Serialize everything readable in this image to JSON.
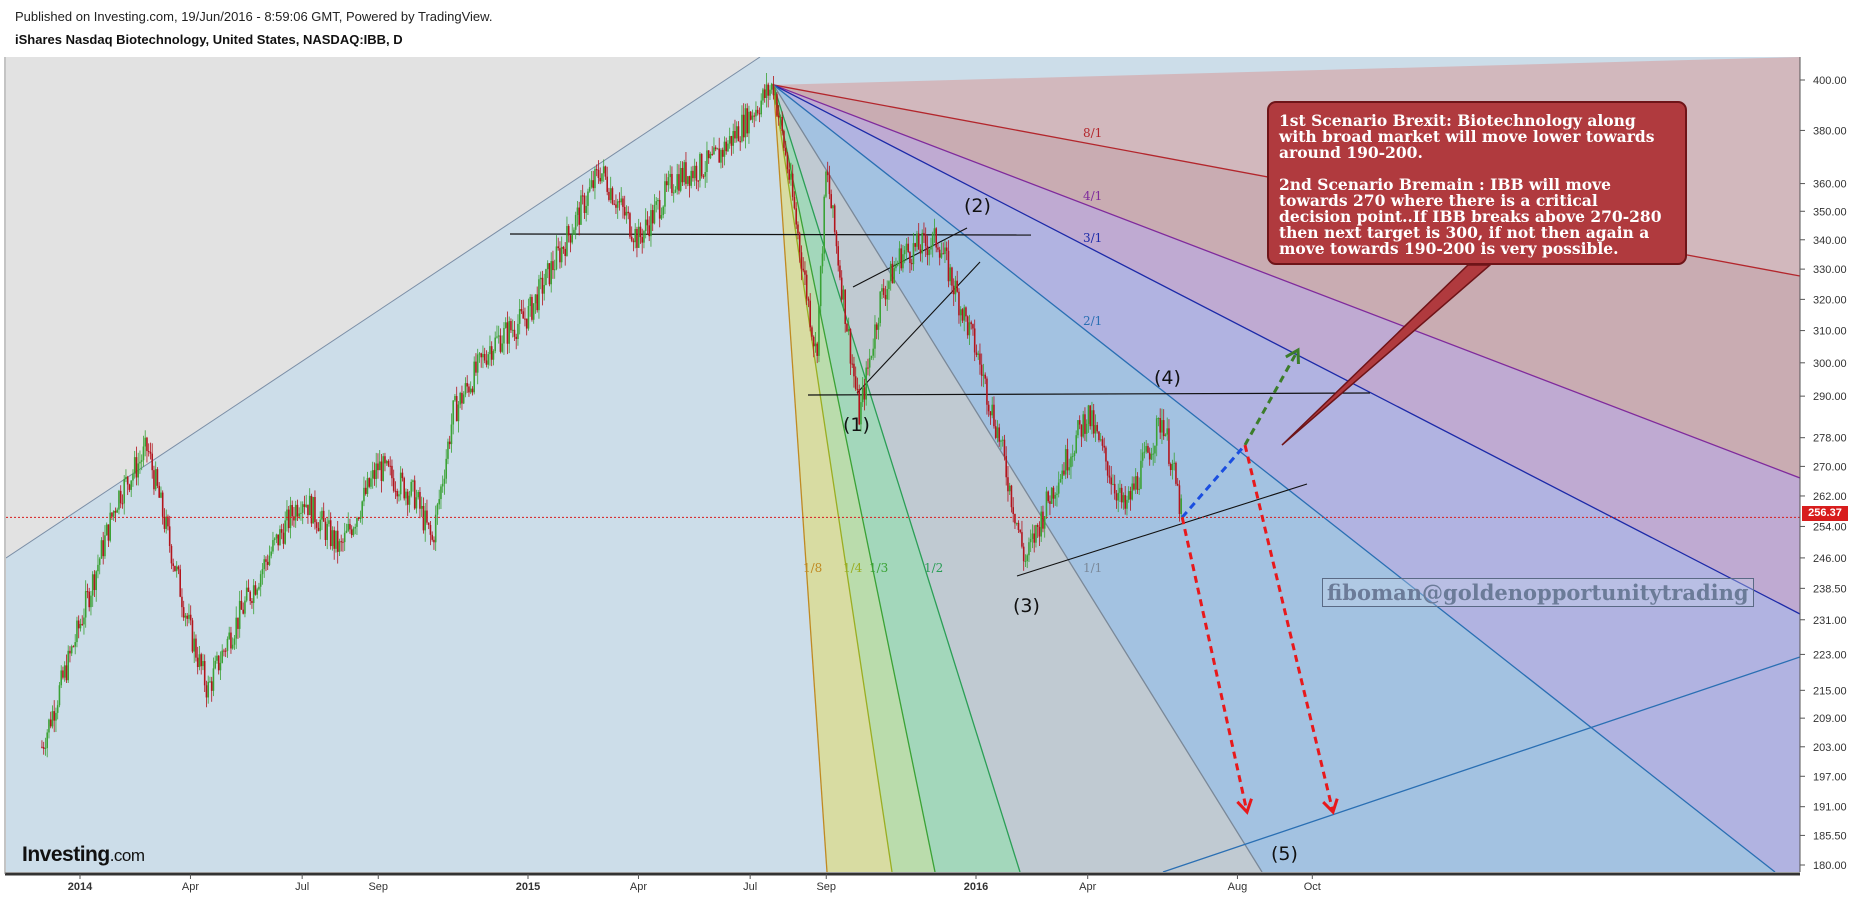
{
  "header": {
    "published": "Published on Investing.com, 19/Jun/2016 - 8:59:06 GMT, Powered by TradingView.",
    "symbol_title": "iShares Nasdaq Biotechnology, United States, NASDAQ:IBB, D"
  },
  "chart_data": {
    "type": "candlestick",
    "y_scale": "log",
    "ylim": [
      176,
      410
    ],
    "y_ticks": [
      "400.00",
      "380.00",
      "360.00",
      "350.00",
      "340.00",
      "330.00",
      "320.00",
      "310.00",
      "300.00",
      "290.00",
      "278.00",
      "270.00",
      "262.00",
      "254.00",
      "246.00",
      "238.50",
      "231.00",
      "223.00",
      "215.00",
      "209.00",
      "203.00",
      "197.00",
      "191.00",
      "185.50",
      "180.00"
    ],
    "x_ticks": [
      "2014",
      "Apr",
      "Jul",
      "Sep",
      "2015",
      "Apr",
      "Jul",
      "Sep",
      "2016",
      "Apr",
      "Aug",
      "Oct"
    ],
    "bold_x_ticks": [
      "2014",
      "2015",
      "2016"
    ],
    "last_price": "256.37",
    "price_path": [
      {
        "t": "2013-12",
        "p": 203
      },
      {
        "t": "2014-01",
        "p": 230
      },
      {
        "t": "2014-02",
        "p": 262
      },
      {
        "t": "2014-02-25",
        "p": 275
      },
      {
        "t": "2014-04",
        "p": 228
      },
      {
        "t": "2014-04-15",
        "p": 215
      },
      {
        "t": "2014-05",
        "p": 226
      },
      {
        "t": "2014-06",
        "p": 245
      },
      {
        "t": "2014-07",
        "p": 262
      },
      {
        "t": "2014-08",
        "p": 248
      },
      {
        "t": "2014-09",
        "p": 270
      },
      {
        "t": "2014-10",
        "p": 262
      },
      {
        "t": "2014-10-15",
        "p": 250
      },
      {
        "t": "2014-11",
        "p": 285
      },
      {
        "t": "2014-12",
        "p": 305
      },
      {
        "t": "2015-01",
        "p": 315
      },
      {
        "t": "2015-02",
        "p": 340
      },
      {
        "t": "2015-03",
        "p": 365
      },
      {
        "t": "2015-04",
        "p": 340
      },
      {
        "t": "2015-05",
        "p": 362
      },
      {
        "t": "2015-06",
        "p": 368
      },
      {
        "t": "2015-07-20",
        "p": 398
      },
      {
        "t": "2015-08",
        "p": 365
      },
      {
        "t": "2015-08-24",
        "p": 302
      },
      {
        "t": "2015-09",
        "p": 365
      },
      {
        "t": "2015-09-28",
        "p": 284
      },
      {
        "t": "2015-10-15",
        "p": 320
      },
      {
        "t": "2015-11",
        "p": 335
      },
      {
        "t": "2015-12",
        "p": 340
      },
      {
        "t": "2016-01",
        "p": 304
      },
      {
        "t": "2016-01-20",
        "p": 278
      },
      {
        "t": "2016-02-10",
        "p": 245
      },
      {
        "t": "2016-03",
        "p": 262
      },
      {
        "t": "2016-04",
        "p": 285
      },
      {
        "t": "2016-05",
        "p": 258
      },
      {
        "t": "2016-06",
        "p": 284
      },
      {
        "t": "2016-06-17",
        "p": 256.37
      }
    ],
    "wave_labels": [
      "(1)",
      "(2)",
      "(3)",
      "(4)",
      "(5)"
    ],
    "fan_labels": [
      "8/1",
      "4/1",
      "3/1",
      "2/1",
      "1/1",
      "1/2",
      "1/3",
      "1/4",
      "1/8"
    ],
    "colors": {
      "plot_bg": "#ccdde9",
      "up_candle": "#3aa235",
      "down_candle": "#b3141c",
      "price_line": "#d81d1d",
      "projection_down": "#e8181b",
      "projection_up_blue": "#1a4ee0",
      "projection_up_green": "#3c7d2a",
      "note_bg": "#b03a3e"
    }
  },
  "annotation": {
    "scenario1": "1st Scenario  Brexit: Biotechnology along with broad market will move lower towards around 190-200.",
    "scenario2": "2nd Scenario Bremain : IBB will move towards 270 where there is a critical decision point..If IBB breaks above 270-280 then next target is 300, if not then again a move towards 190-200 is very possible."
  },
  "watermark": "fiboman@goldenopportunitytrading",
  "logo": {
    "name": "Investing",
    "suffix": ".com"
  }
}
